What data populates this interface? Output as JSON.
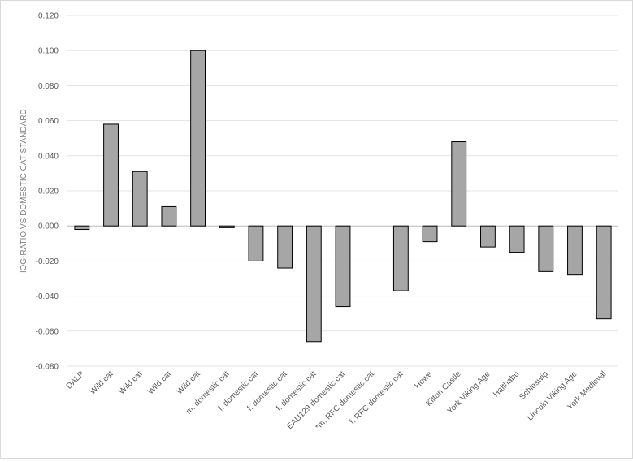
{
  "chart_data": {
    "type": "bar",
    "title": "",
    "xlabel": "",
    "ylabel": "lOG-RATIO VS DOMESTIC CAT STANDARD",
    "ylim": [
      -0.08,
      0.12
    ],
    "ytick_step": 0.02,
    "grid": true,
    "legend": "none",
    "bar_color": "#a6a6a6",
    "bar_edge_color": "#000000",
    "categories": [
      "DALP",
      "Wild cat",
      "Wild cat",
      "Wild cat",
      "Wild cat",
      "m. domestic cat",
      "f. domestic cat",
      "f. domestic cat",
      "f. domestic cat",
      "EAU129 domestic cat",
      "*m. RFC domestic cat",
      "f. RFC domestic cat",
      "Howe",
      "Kilton Castle",
      "York Viking Age",
      "Haithabu",
      "Schleswig",
      "Lincoln Viking Age",
      "York Medieval"
    ],
    "values": [
      -0.002,
      0.058,
      0.031,
      0.011,
      0.1,
      -0.001,
      -0.02,
      -0.024,
      -0.066,
      -0.046,
      0.0,
      -0.037,
      -0.009,
      0.048,
      -0.012,
      -0.015,
      -0.026,
      -0.028,
      -0.053
    ]
  }
}
